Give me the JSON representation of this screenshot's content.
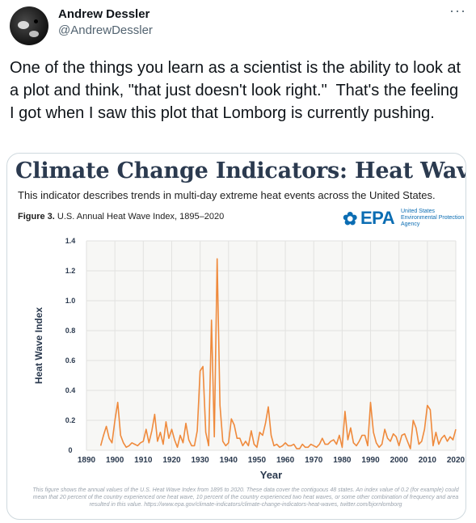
{
  "author": {
    "name": "Andrew Dessler",
    "handle": "@AndrewDessler"
  },
  "icons": {
    "more": "more-horizontal-icon",
    "epa_logo": "epa-flower-icon"
  },
  "more_glyph": "···",
  "tweet": {
    "text": "One of the things you learn as a scientist is the ability to look at a plot and think, \"that just doesn't look right.\"  That's the feeling I got when I saw this plot that Lomborg is currently pushing."
  },
  "infographic": {
    "title": "Climate Change Indicators: Heat Waves",
    "subtitle": "This indicator describes trends in multi-day extreme heat events across the United States.",
    "figure_number": "Figure 3.",
    "figure_caption": "U.S. Annual Heat Wave Index, 1895–2020",
    "epa_wordmark": "EPA",
    "epa_agency_lines": "United States Environmental Protection Agency",
    "footnote": "This figure shows the annual values of the U.S. Heat Wave Index from 1895 to 2020. These data cover the contiguous 48 states. An index value of 0.2 (for example) could mean that 20 percent of the country experienced one heat wave, 10 percent of the country experienced two heat waves, or some other combination of frequency and area resulted in this value. https://www.epa.gov/climate-indicators/climate-change-indicators-heat-waves, twitter.com/bjornlomborg"
  },
  "colors": {
    "line": "#ef8a3c",
    "title": "#2b3a4f",
    "epa_blue": "#0b6db3",
    "plot_bg": "#f7f7f5",
    "grid": "#e2e2e0"
  },
  "chart_data": {
    "type": "line",
    "xlabel": "Year",
    "ylabel": "Heat Wave Index",
    "xlim": [
      1890,
      2020
    ],
    "ylim": [
      0,
      1.4
    ],
    "x_ticks": [
      1890,
      1900,
      1910,
      1920,
      1930,
      1940,
      1950,
      1960,
      1970,
      1980,
      1990,
      2000,
      2010,
      2020
    ],
    "y_ticks": [
      0,
      0.2,
      0.4,
      0.6,
      0.8,
      1.0,
      1.2,
      1.4
    ],
    "y_tick_labels": [
      "0",
      "0.2",
      "0.4",
      "0.6",
      "0.8",
      "1.0",
      "1.2",
      "1.4"
    ],
    "grid": true,
    "x": [
      1895,
      1896,
      1897,
      1898,
      1899,
      1900,
      1901,
      1902,
      1903,
      1904,
      1905,
      1906,
      1907,
      1908,
      1909,
      1910,
      1911,
      1912,
      1913,
      1914,
      1915,
      1916,
      1917,
      1918,
      1919,
      1920,
      1921,
      1922,
      1923,
      1924,
      1925,
      1926,
      1927,
      1928,
      1929,
      1930,
      1931,
      1932,
      1933,
      1934,
      1935,
      1936,
      1937,
      1938,
      1939,
      1940,
      1941,
      1942,
      1943,
      1944,
      1945,
      1946,
      1947,
      1948,
      1949,
      1950,
      1951,
      1952,
      1953,
      1954,
      1955,
      1956,
      1957,
      1958,
      1959,
      1960,
      1961,
      1962,
      1963,
      1964,
      1965,
      1966,
      1967,
      1968,
      1969,
      1970,
      1971,
      1972,
      1973,
      1974,
      1975,
      1976,
      1977,
      1978,
      1979,
      1980,
      1981,
      1982,
      1983,
      1984,
      1985,
      1986,
      1987,
      1988,
      1989,
      1990,
      1991,
      1992,
      1993,
      1994,
      1995,
      1996,
      1997,
      1998,
      1999,
      2000,
      2001,
      2002,
      2003,
      2004,
      2005,
      2006,
      2007,
      2008,
      2009,
      2010,
      2011,
      2012,
      2013,
      2014,
      2015,
      2016,
      2017,
      2018,
      2019,
      2020
    ],
    "y": [
      0.03,
      0.1,
      0.16,
      0.08,
      0.05,
      0.2,
      0.32,
      0.1,
      0.05,
      0.02,
      0.03,
      0.05,
      0.04,
      0.03,
      0.05,
      0.06,
      0.14,
      0.05,
      0.13,
      0.24,
      0.06,
      0.12,
      0.04,
      0.19,
      0.08,
      0.14,
      0.07,
      0.02,
      0.1,
      0.05,
      0.18,
      0.07,
      0.03,
      0.03,
      0.13,
      0.53,
      0.56,
      0.12,
      0.03,
      0.87,
      0.09,
      1.28,
      0.3,
      0.06,
      0.03,
      0.05,
      0.21,
      0.17,
      0.08,
      0.08,
      0.03,
      0.06,
      0.03,
      0.13,
      0.04,
      0.02,
      0.12,
      0.1,
      0.18,
      0.29,
      0.1,
      0.03,
      0.04,
      0.02,
      0.03,
      0.05,
      0.03,
      0.03,
      0.04,
      0.01,
      0.01,
      0.04,
      0.02,
      0.02,
      0.04,
      0.03,
      0.02,
      0.04,
      0.08,
      0.04,
      0.04,
      0.06,
      0.07,
      0.04,
      0.1,
      0.02,
      0.26,
      0.07,
      0.15,
      0.05,
      0.03,
      0.06,
      0.1,
      0.1,
      0.03,
      0.32,
      0.12,
      0.05,
      0.02,
      0.04,
      0.14,
      0.08,
      0.06,
      0.11,
      0.09,
      0.03,
      0.1,
      0.11,
      0.06,
      0.01,
      0.2,
      0.15,
      0.04,
      0.06,
      0.14,
      0.3,
      0.27,
      0.03,
      0.12,
      0.04,
      0.08,
      0.1,
      0.06,
      0.09,
      0.07,
      0.14
    ]
  }
}
